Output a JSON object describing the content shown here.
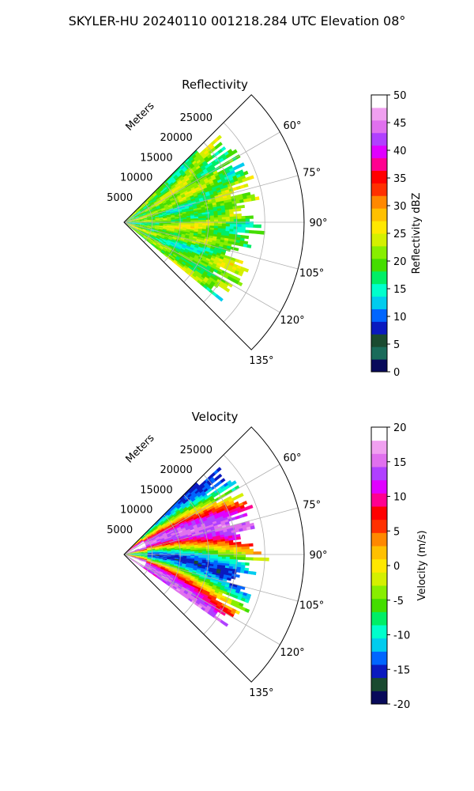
{
  "figure": {
    "title": "SKYLER-HU  20240110  001218.284 UTC Elevation 08°"
  },
  "chart_data": [
    {
      "type": "heatmap",
      "subtype": "polar-sector",
      "title": "Reflectivity",
      "range_label": "Meters",
      "range_ticks": [
        5000,
        10000,
        15000,
        20000,
        25000
      ],
      "range_lim": [
        0,
        32000
      ],
      "azimuth_ticks": [
        "60°",
        "75°",
        "90°",
        "105°",
        "120°",
        "135°"
      ],
      "azimuth_tick_values": [
        60,
        75,
        90,
        105,
        120,
        135
      ],
      "azimuth_lim": [
        45,
        135
      ],
      "data_extent": {
        "azimuth": [
          45,
          129
        ],
        "range_max": 28000
      },
      "grid": true,
      "colorbar": {
        "label": "Reflectivity dBZ",
        "min": 0,
        "max": 50,
        "ticks": [
          0,
          5,
          10,
          15,
          20,
          25,
          30,
          35,
          40,
          45,
          50
        ],
        "stops": [
          "#080a5a",
          "#1a6b5a",
          "#1a4a30",
          "#0a1abf",
          "#0066ff",
          "#00ccee",
          "#00ffcc",
          "#00ee66",
          "#44dd00",
          "#88ee00",
          "#d4f000",
          "#ffe800",
          "#ffc000",
          "#ff8800",
          "#ff3000",
          "#ff0000",
          "#ff0090",
          "#e000ff",
          "#b040ff",
          "#e070ee",
          "#f0a0f0",
          "#ffffff"
        ]
      },
      "field_summary": "mostly 17–25 dBZ (green to yellow-green), maxima near 25 dBZ"
    },
    {
      "type": "heatmap",
      "subtype": "polar-sector",
      "title": "Velocity",
      "range_label": "Meters",
      "range_ticks": [
        5000,
        10000,
        15000,
        20000,
        25000
      ],
      "range_lim": [
        0,
        32000
      ],
      "azimuth_ticks": [
        "60°",
        "75°",
        "90°",
        "105°",
        "120°",
        "135°"
      ],
      "azimuth_tick_values": [
        60,
        75,
        90,
        105,
        120,
        135
      ],
      "azimuth_lim": [
        45,
        135
      ],
      "data_extent": {
        "azimuth": [
          45,
          125
        ],
        "range_max": 28000
      },
      "grid": true,
      "colorbar": {
        "label": "Velocity (m/s)",
        "min": -20,
        "max": 20,
        "ticks": [
          -20,
          -15,
          -10,
          -5,
          0,
          5,
          10,
          15,
          20
        ],
        "stops": [
          "#080a5a",
          "#1a4a30",
          "#0a1abf",
          "#0066ff",
          "#00ccee",
          "#00ffcc",
          "#00ee66",
          "#44dd00",
          "#88ee00",
          "#d4f000",
          "#ffe800",
          "#ffc000",
          "#ff8800",
          "#ff3000",
          "#ff0000",
          "#ff0090",
          "#e000ff",
          "#b040ff",
          "#e070ee",
          "#f0a0f0",
          "#ffffff"
        ]
      },
      "field_summary": "bands from about -10 m/s (cyan) through 0 (yellow) to +15 m/s (magenta), varying with azimuth"
    }
  ]
}
